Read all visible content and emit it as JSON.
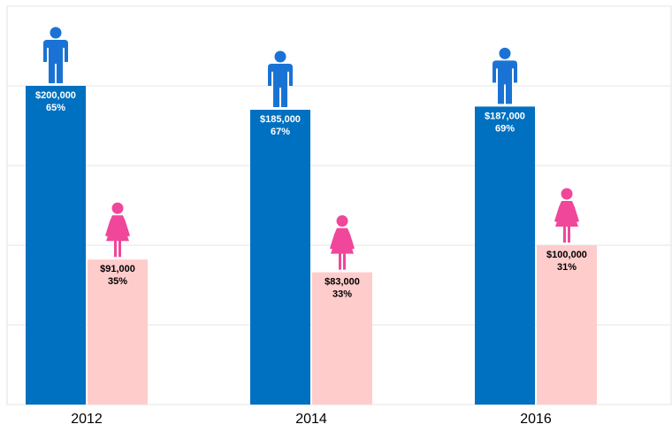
{
  "chart_data": {
    "type": "bar",
    "categories": [
      "2012",
      "2014",
      "2016"
    ],
    "series": [
      {
        "color": "#0070c0",
        "icon_color": "#1a73d4",
        "icon": "male",
        "label_color": "#ffffff",
        "values": [
          200000,
          185000,
          187000
        ],
        "value_labels": [
          "$200,000",
          "$185,000",
          "$187,000"
        ],
        "share_labels": [
          "65%",
          "67%",
          "69%"
        ]
      },
      {
        "color": "#ffcccc",
        "icon_color": "#f0479a",
        "icon": "female",
        "label_color": "#000000",
        "values": [
          91000,
          83000,
          100000
        ],
        "value_labels": [
          "$91,000",
          "$83,000",
          "$100,000"
        ],
        "share_labels": [
          "35%",
          "33%",
          "31%"
        ]
      }
    ],
    "ylim": [
      0,
      250000
    ],
    "yticks": [
      0,
      50000,
      100000,
      150000,
      200000,
      250000
    ],
    "grid": true
  }
}
